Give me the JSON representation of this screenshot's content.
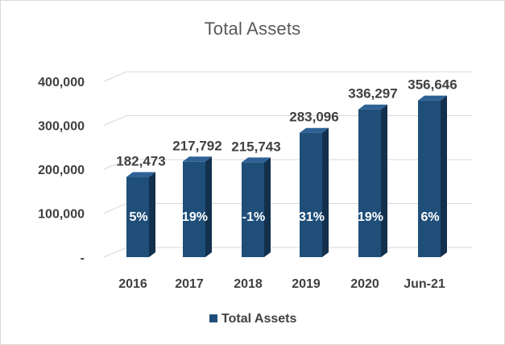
{
  "chart_data": {
    "type": "bar",
    "title": "Total Assets",
    "categories": [
      "2016",
      "2017",
      "2018",
      "2019",
      "2020",
      "Jun-21"
    ],
    "series": [
      {
        "name": "Total Assets",
        "values": [
          182473,
          217792,
          215743,
          283096,
          336297,
          356646
        ],
        "value_labels": [
          "182,473",
          "217,792",
          "215,743",
          "283,096",
          "336,297",
          "356,646"
        ],
        "growth_labels": [
          "5%",
          "19%",
          "-1%",
          "31%",
          "19%",
          "6%"
        ]
      }
    ],
    "y_tick_values": [
      0,
      100000,
      200000,
      300000,
      400000
    ],
    "y_tick_labels": [
      "-",
      "100,000",
      "200,000",
      "300,000",
      "400,000"
    ],
    "ylim": [
      0,
      400000
    ],
    "grid": true,
    "legend_position": "bottom",
    "style": "3d-column",
    "colors": {
      "bar_front": "#1f4e79",
      "bar_side": "#13304d",
      "bar_top": "#2e6296",
      "grid": "#d9d9d9",
      "text_dark": "#404040",
      "text_growth": "#ffffff"
    }
  }
}
